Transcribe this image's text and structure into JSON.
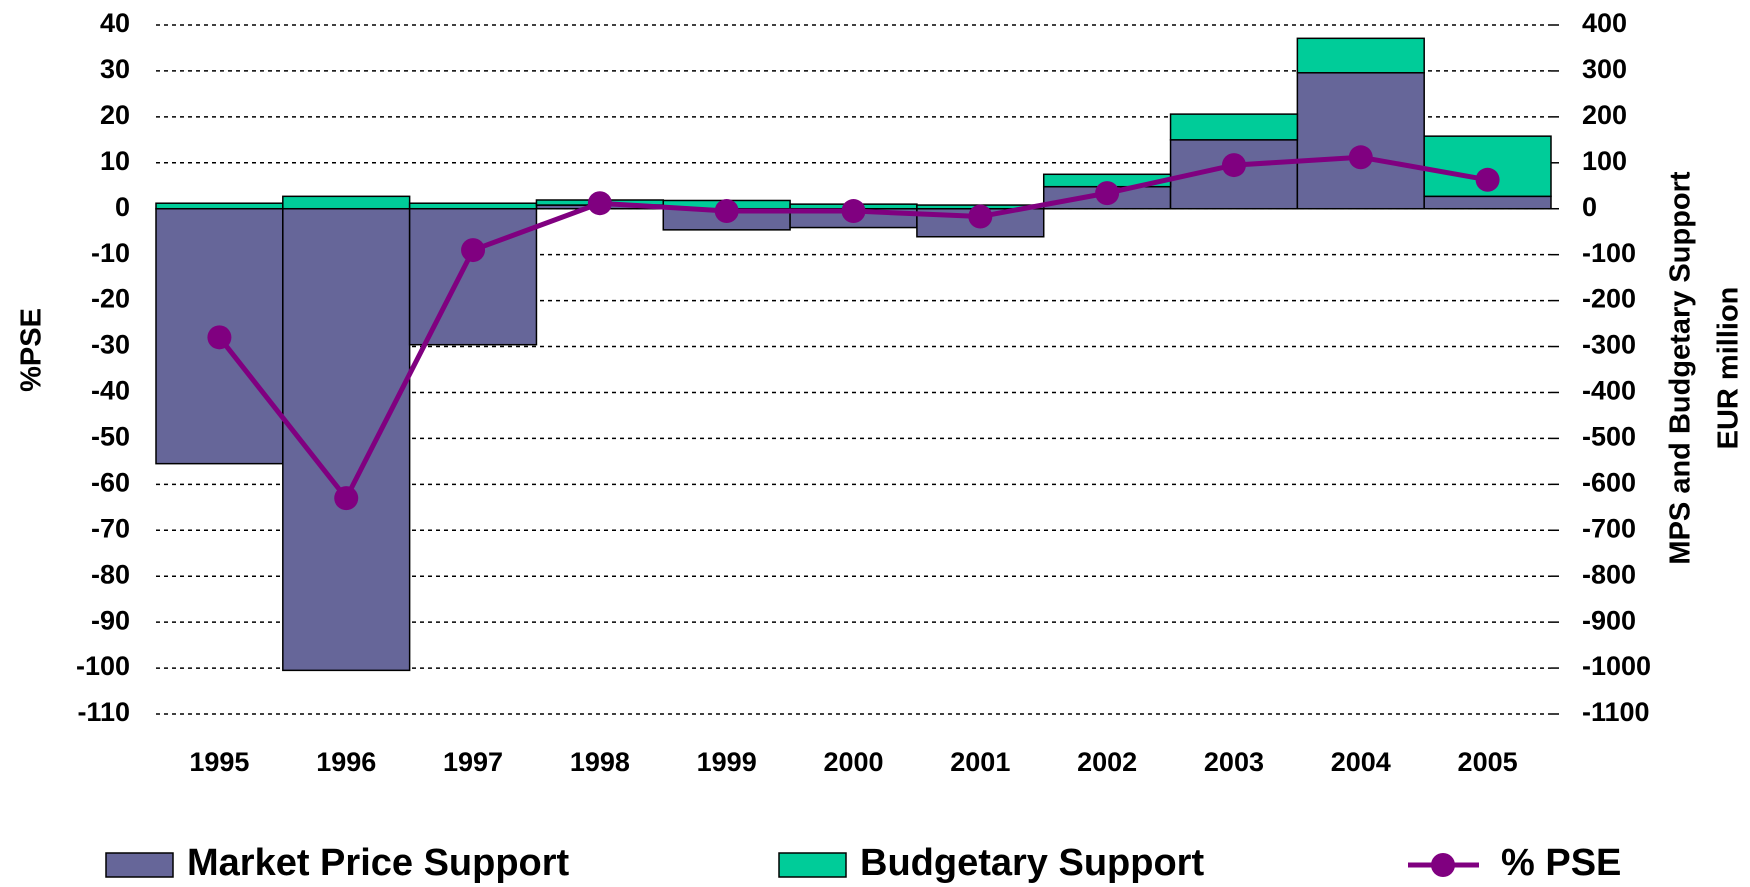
{
  "chart_data": {
    "type": "bar",
    "categories": [
      "1995",
      "1996",
      "1997",
      "1998",
      "1999",
      "2000",
      "2001",
      "2002",
      "2003",
      "2004",
      "2005"
    ],
    "ylabel": "%PSE",
    "y2label": [
      "MPS and Budgetary Support",
      "EUR million"
    ],
    "ylim": [
      -110,
      40
    ],
    "yticks": [
      40,
      30,
      20,
      10,
      0,
      -10,
      -20,
      -30,
      -40,
      -50,
      -60,
      -70,
      -80,
      -90,
      -100,
      -110
    ],
    "y2lim": [
      -1100,
      400
    ],
    "y2ticks": [
      400,
      300,
      200,
      100,
      0,
      -100,
      -200,
      -300,
      -400,
      -500,
      -600,
      -700,
      -800,
      -900,
      -1000,
      -1100
    ],
    "grid": true,
    "legend": "bottom",
    "series": [
      {
        "name": "Market Price Support",
        "type": "bar",
        "axis": "y2",
        "color": "#666699",
        "values": [
          -555,
          -1005,
          -296,
          8,
          -46,
          -41,
          -61,
          48,
          150,
          296,
          27
        ]
      },
      {
        "name": "Budgetary Support",
        "type": "bar",
        "axis": "y2",
        "color": "#00cc99",
        "values": [
          12,
          27,
          12,
          11,
          18,
          10,
          8,
          27,
          56,
          75,
          131
        ]
      },
      {
        "name": "% PSE",
        "type": "line",
        "color": "#800080",
        "values": [
          -28,
          -63,
          -9,
          1.2,
          -0.5,
          -0.5,
          -1.7,
          3.4,
          9.5,
          11.2,
          6.3
        ]
      }
    ]
  }
}
